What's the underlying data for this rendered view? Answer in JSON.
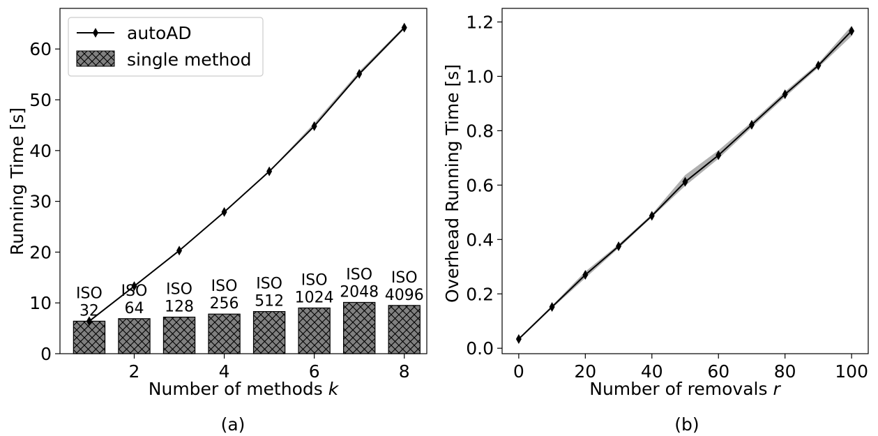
{
  "chart_data": [
    {
      "type": "bar",
      "caption": "(a)",
      "xlabel_prefix": "Number of methods ",
      "xlabel_var": "k",
      "ylabel": "Running Time [s]",
      "xlim": [
        0.35,
        8.5
      ],
      "ylim": [
        0,
        68
      ],
      "xticks": [
        2,
        4,
        6,
        8
      ],
      "yticks": [
        0,
        10,
        20,
        30,
        40,
        50,
        60
      ],
      "grid": false,
      "legend": {
        "placement": "top-left",
        "entries": [
          {
            "label": "autoAD",
            "kind": "line"
          },
          {
            "label": "single method",
            "kind": "hatched-bar"
          }
        ]
      },
      "bars": {
        "name": "single method",
        "x": [
          1,
          2,
          3,
          4,
          5,
          6,
          7,
          8
        ],
        "values": [
          6.4,
          6.9,
          7.2,
          7.8,
          8.3,
          9.0,
          10.1,
          9.5
        ],
        "labels": [
          [
            "ISO",
            "32"
          ],
          [
            "ISO",
            "64"
          ],
          [
            "ISO",
            "128"
          ],
          [
            "ISO",
            "256"
          ],
          [
            "ISO",
            "512"
          ],
          [
            "ISO",
            "1024"
          ],
          [
            "ISO",
            "2048"
          ],
          [
            "ISO",
            "4096"
          ]
        ]
      },
      "series": [
        {
          "name": "autoAD",
          "x": [
            1,
            2,
            3,
            4,
            5,
            6,
            7,
            8
          ],
          "values": [
            6.4,
            13.3,
            20.3,
            27.9,
            35.9,
            44.8,
            55.1,
            64.2
          ],
          "band_lower": [
            6.3,
            13.2,
            20.2,
            27.8,
            35.8,
            44.6,
            54.8,
            63.9
          ],
          "band_upper": [
            6.5,
            13.4,
            20.4,
            28.0,
            36.0,
            45.4,
            55.6,
            64.5
          ]
        }
      ],
      "colors": {
        "bar_fill": "#808080",
        "line": "#000000",
        "band": "#b0b0b0"
      }
    },
    {
      "type": "line",
      "caption": "(b)",
      "xlabel_prefix": "Number of removals ",
      "xlabel_var": "r",
      "ylabel": "Overhead Running Time [s]",
      "xlim": [
        -5,
        105
      ],
      "ylim": [
        -0.02,
        1.25
      ],
      "xticks": [
        0,
        20,
        40,
        60,
        80,
        100
      ],
      "yticks": [
        "0.0",
        "0.2",
        "0.4",
        "0.6",
        "0.8",
        "1.0",
        "1.2"
      ],
      "grid": false,
      "series": [
        {
          "x": [
            0,
            10,
            20,
            30,
            40,
            50,
            60,
            70,
            80,
            90,
            100
          ],
          "values": [
            0.034,
            0.152,
            0.27,
            0.375,
            0.487,
            0.612,
            0.71,
            0.822,
            0.934,
            1.04,
            1.167
          ],
          "band_lower": [
            0.03,
            0.147,
            0.258,
            0.368,
            0.482,
            0.597,
            0.697,
            0.812,
            0.924,
            1.032,
            1.148
          ],
          "band_upper": [
            0.038,
            0.157,
            0.282,
            0.382,
            0.493,
            0.637,
            0.728,
            0.832,
            0.944,
            1.048,
            1.186
          ]
        }
      ],
      "colors": {
        "line": "#000000",
        "band": "#b0b0b0"
      }
    }
  ]
}
